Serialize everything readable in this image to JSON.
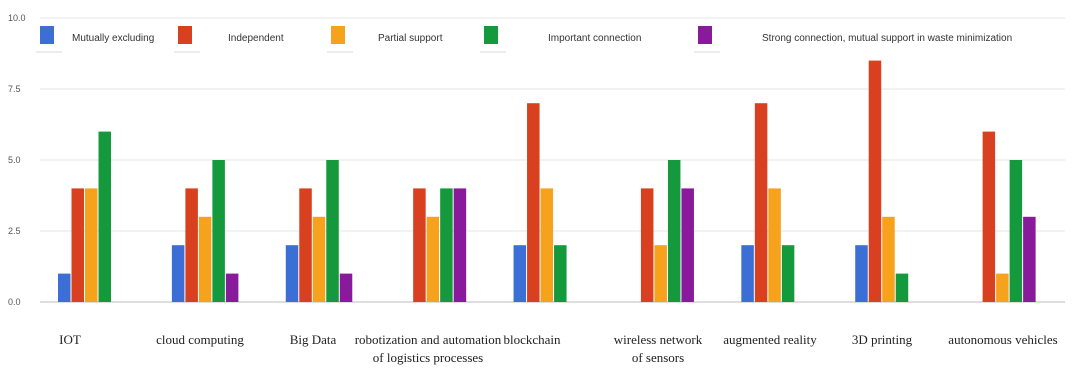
{
  "chart_data": {
    "type": "bar",
    "title": "",
    "xlabel": "",
    "ylabel": "",
    "ylim": [
      0,
      10
    ],
    "yticks": [
      0,
      2.5,
      5,
      7.5,
      10
    ],
    "ytick_labels": [
      "0.0",
      "2.5",
      "5.0",
      "7.5",
      "10.0"
    ],
    "grid": true,
    "legend_position": "top",
    "categories": [
      "IOT",
      "cloud computing",
      "Big Data",
      "robotization and automation of logistics processes",
      "blockchain",
      "wireless network of sensors",
      "augmented reality",
      "3D printing",
      "autonomous vehicles"
    ],
    "category_label_lines": [
      [
        "IOT"
      ],
      [
        "cloud computing"
      ],
      [
        "Big Data"
      ],
      [
        "robotization and automation",
        "of logistics processes"
      ],
      [
        "blockchain"
      ],
      [
        "wireless network",
        "of sensors"
      ],
      [
        "augmented reality"
      ],
      [
        "3D printing"
      ],
      [
        "autonomous vehicles"
      ]
    ],
    "series": [
      {
        "name": "Mutually excluding",
        "color": "#3b6fd6",
        "values": [
          1,
          2,
          2,
          0,
          2,
          0,
          2,
          2,
          0
        ]
      },
      {
        "name": "Independent",
        "color": "#d8401f",
        "values": [
          4,
          4,
          4,
          4,
          7,
          4,
          7,
          8.5,
          6
        ]
      },
      {
        "name": "Partial support",
        "color": "#f6a21c",
        "values": [
          4,
          3,
          3,
          3,
          4,
          2,
          4,
          3,
          1
        ]
      },
      {
        "name": "Important connection",
        "color": "#149a3c",
        "values": [
          6,
          5,
          5,
          4,
          2,
          5,
          2,
          1,
          5
        ]
      },
      {
        "name": "Strong connection, mutual support in waste minimization",
        "color": "#8a1a9c",
        "values": [
          0,
          1,
          1,
          4,
          0,
          4,
          0,
          0,
          3
        ]
      }
    ]
  }
}
